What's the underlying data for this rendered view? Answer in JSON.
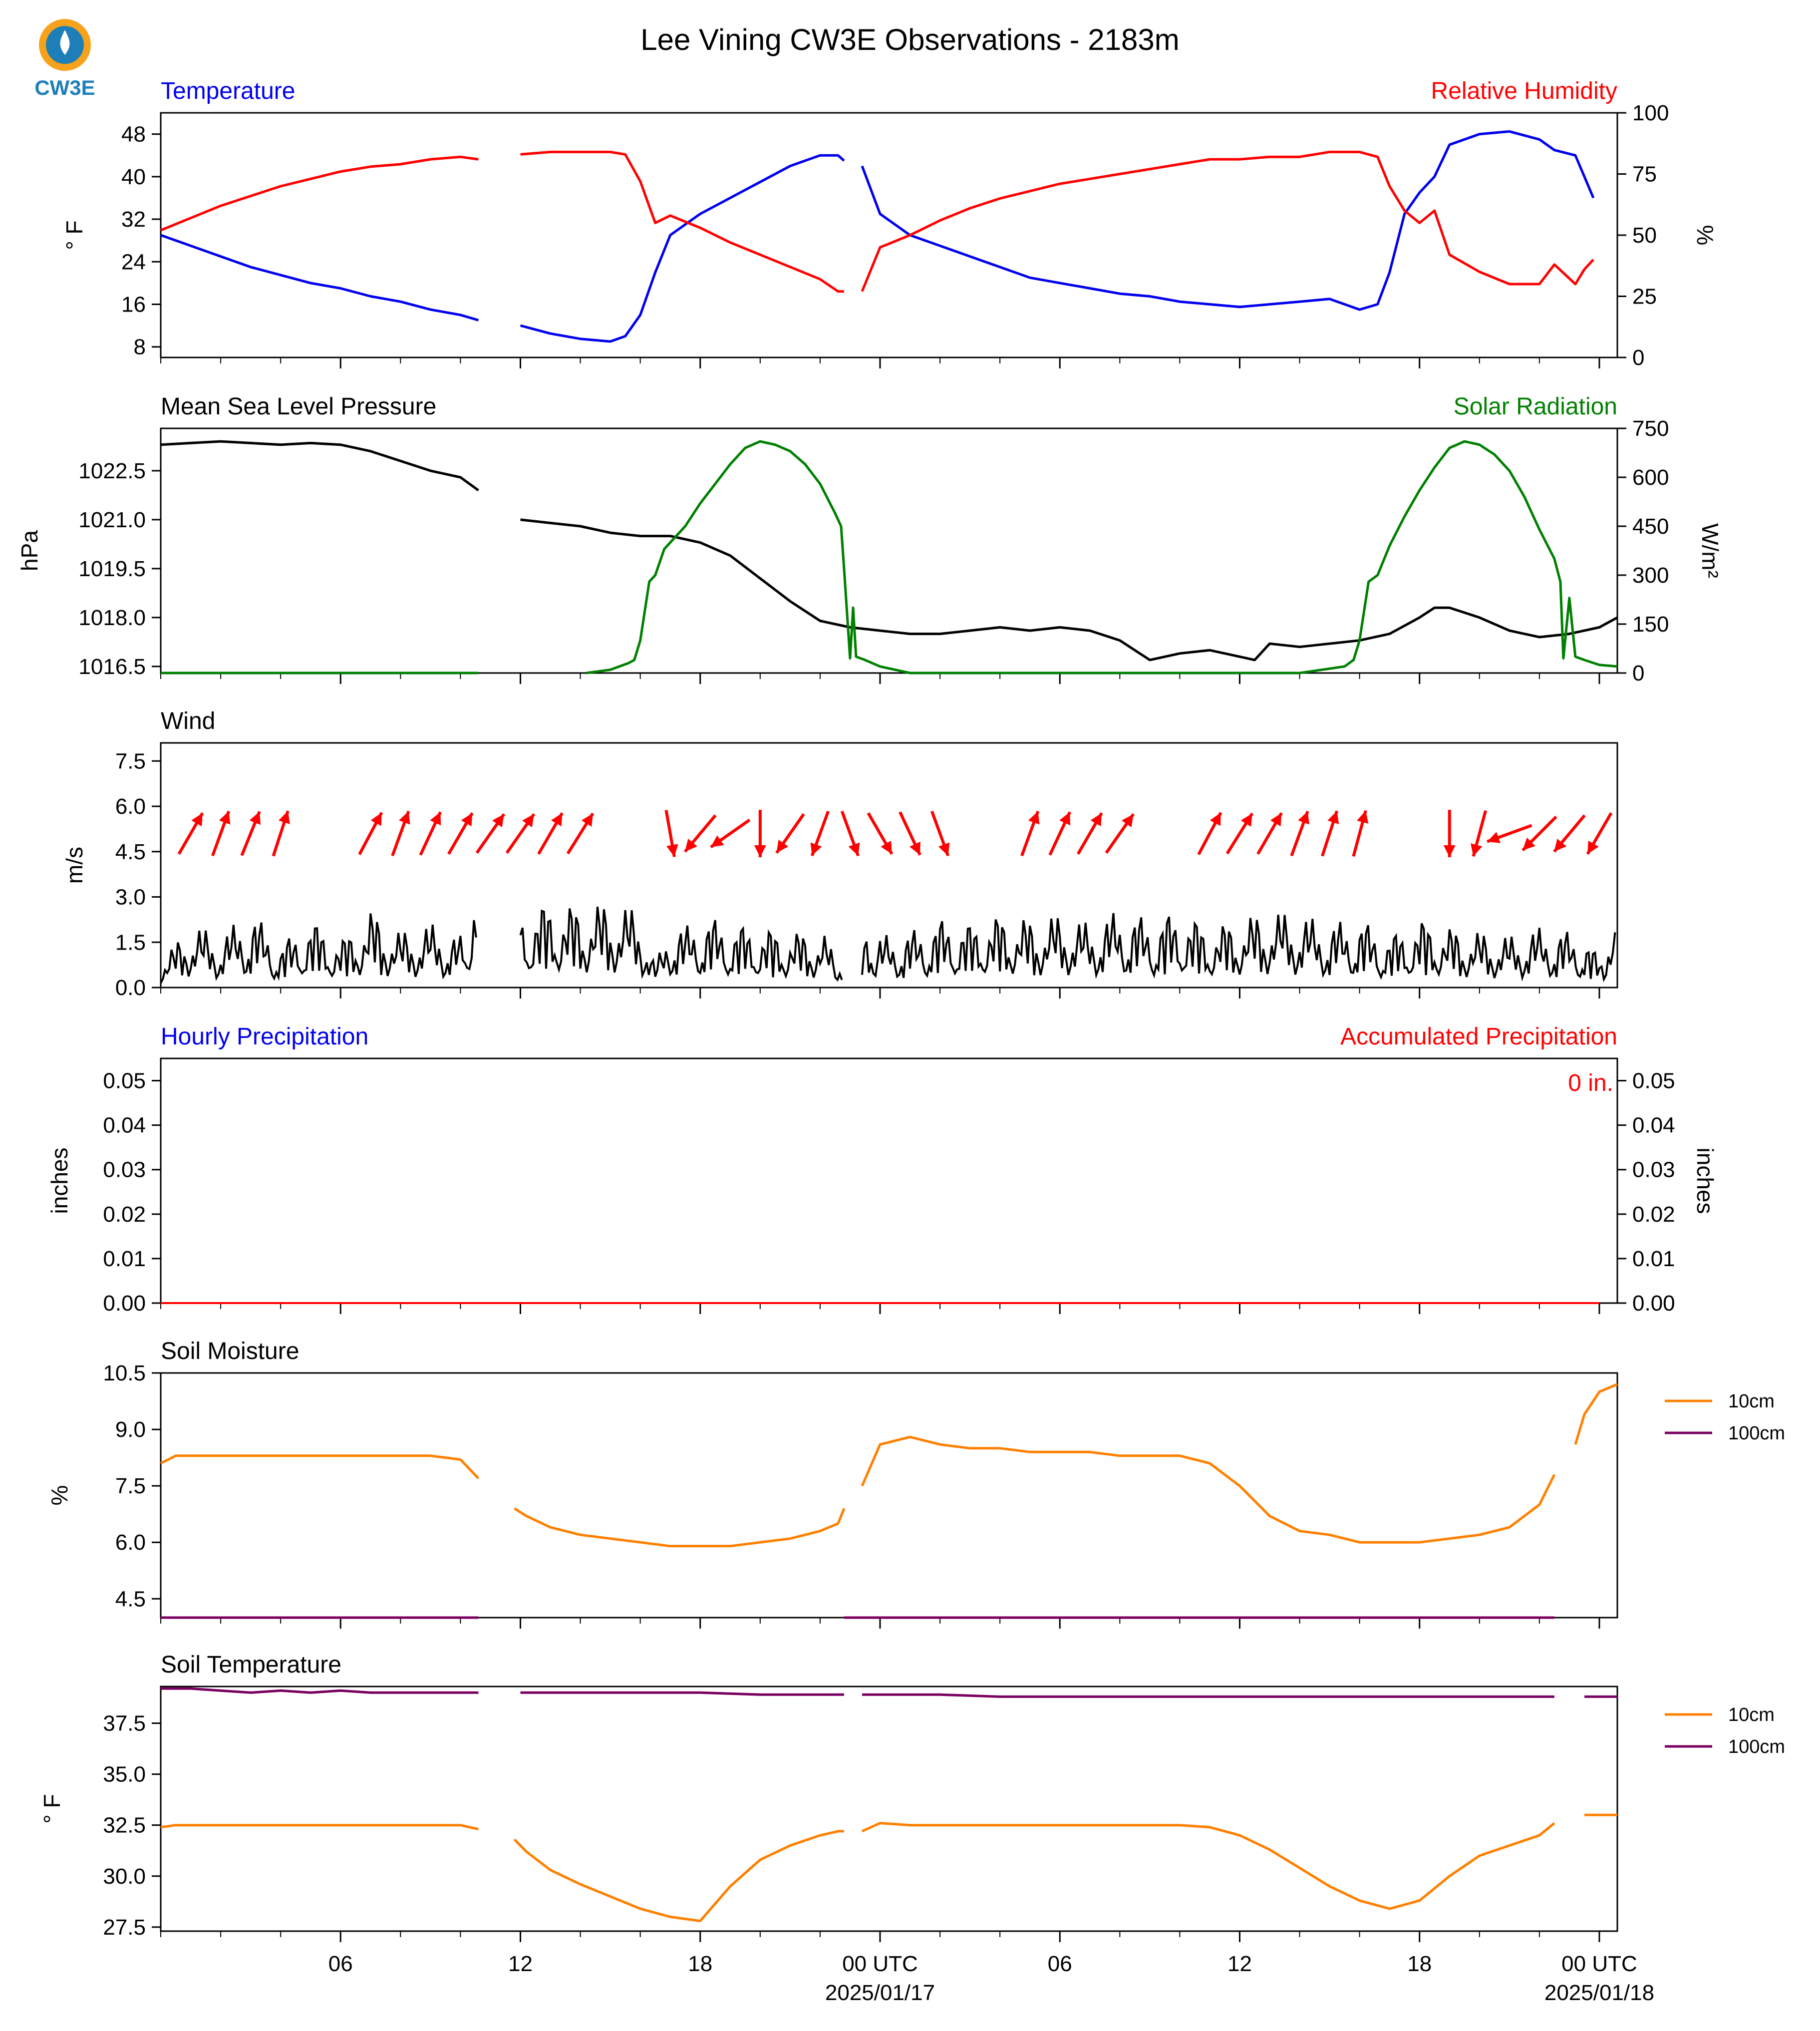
{
  "title": "Lee Vining CW3E Observations - 2183m",
  "logo_text": "CW3E",
  "colors": {
    "temperature": "#0000ee",
    "humidity": "#ff0000",
    "pressure": "#000000",
    "solar": "#008000",
    "wind_speed": "#000000",
    "wind_barb": "#ff0000",
    "hourly_precip": "#0000ee",
    "accum_precip": "#ff0000",
    "soil_10cm": "#ff8000",
    "soil_100cm": "#7a0060",
    "logo_orange": "#f7a21b",
    "logo_blue": "#1e7fb8"
  },
  "x_axis": {
    "range_hours": [
      -21,
      29
    ],
    "ticks": [
      {
        "hour": 6,
        "label": "06",
        "sub": ""
      },
      {
        "hour": 12,
        "label": "12",
        "sub": ""
      },
      {
        "hour": 18,
        "label": "18",
        "sub": ""
      },
      {
        "hour": 24,
        "label": "00 UTC",
        "sub": "2025/01/17"
      },
      {
        "hour": 30,
        "label": "06",
        "sub": ""
      },
      {
        "hour": 36,
        "label": "12",
        "sub": ""
      },
      {
        "hour": 42,
        "label": "18",
        "sub": ""
      },
      {
        "hour": 48,
        "label": "00 UTC",
        "sub": "2025/01/18"
      }
    ],
    "start_hour": 1,
    "end_hour": 49
  },
  "panels": {
    "temperature": {
      "left_title": "Temperature",
      "right_title": "Relative Humidity",
      "left_unit": "° F",
      "right_unit": "%",
      "left_ticks": [
        "8",
        "16",
        "24",
        "32",
        "40",
        "48"
      ],
      "right_ticks": [
        "0",
        "25",
        "50",
        "75",
        "100"
      ]
    },
    "pressure": {
      "left_title": "Mean Sea Level Pressure",
      "right_title": "Solar Radiation",
      "left_unit": "hPa",
      "right_unit": "W/m²",
      "left_ticks": [
        "1016.5",
        "1018.0",
        "1019.5",
        "1021.0",
        "1022.5"
      ],
      "right_ticks": [
        "0",
        "150",
        "300",
        "450",
        "600",
        "750"
      ]
    },
    "wind": {
      "left_title": "Wind",
      "left_unit": "m/s",
      "left_ticks": [
        "0.0",
        "1.5",
        "3.0",
        "4.5",
        "6.0",
        "7.5"
      ]
    },
    "precip": {
      "left_title": "Hourly Precipitation",
      "right_title": "Accumulated Precipitation",
      "left_unit": "inches",
      "right_unit": "inches",
      "left_ticks": [
        "0.00",
        "0.01",
        "0.02",
        "0.03",
        "0.04",
        "0.05"
      ],
      "right_ticks": [
        "0.00",
        "0.01",
        "0.02",
        "0.03",
        "0.04",
        "0.05"
      ],
      "accum_label": "0 in."
    },
    "soil_moisture": {
      "left_title": "Soil Moisture",
      "left_unit": "%",
      "left_ticks": [
        "4.5",
        "6.0",
        "7.5",
        "9.0",
        "10.5"
      ],
      "legend": [
        "10cm",
        "100cm"
      ]
    },
    "soil_temp": {
      "left_title": "Soil Temperature",
      "left_unit": "° F",
      "left_ticks": [
        "27.5",
        "30.0",
        "32.5",
        "35.0",
        "37.5"
      ],
      "legend": [
        "10cm",
        "100cm"
      ]
    }
  },
  "chart_data": [
    {
      "type": "line",
      "title": "Temperature",
      "ylabel": "° F",
      "ylim": [
        6,
        52
      ],
      "x": [
        0,
        1,
        2,
        3,
        4,
        5,
        6,
        7,
        8,
        9,
        10,
        10.6,
        11.2,
        12,
        13,
        14,
        15,
        15.5,
        16,
        16.5,
        17,
        18,
        19,
        20,
        21,
        22,
        22.6,
        22.8,
        23,
        23.4,
        24,
        25,
        26,
        27,
        28,
        29,
        30,
        31,
        32,
        33,
        34,
        35,
        36,
        37,
        38,
        39,
        40,
        40.6,
        41,
        41.5,
        42,
        42.5,
        43,
        44,
        45,
        46,
        46.5,
        47.2,
        47.5,
        47.8
      ],
      "y": [
        29,
        27,
        25,
        23,
        21.5,
        20,
        19,
        17.5,
        16.5,
        15,
        14,
        13,
        null,
        12,
        10.5,
        9.5,
        9,
        10,
        14,
        22,
        29,
        33,
        36,
        39,
        42,
        44,
        44,
        43,
        null,
        42,
        33,
        29,
        27,
        25,
        23,
        21,
        20,
        19,
        18,
        17.5,
        16.5,
        16,
        15.5,
        16,
        16.5,
        17,
        15,
        16,
        22,
        33,
        37,
        40,
        46,
        48,
        48.5,
        47,
        45,
        44,
        40,
        36
      ]
    },
    {
      "type": "line",
      "title": "Relative Humidity",
      "ylabel": "%",
      "ylim": [
        0,
        100
      ],
      "x": [
        0,
        1,
        2,
        3,
        4,
        5,
        6,
        7,
        8,
        9,
        10,
        10.6,
        11.2,
        12,
        13,
        14,
        15,
        15.5,
        16,
        16.5,
        17,
        18,
        19,
        20,
        21,
        22,
        22.6,
        22.8,
        23,
        23.4,
        24,
        25,
        26,
        27,
        28,
        29,
        30,
        31,
        32,
        33,
        34,
        35,
        36,
        37,
        38,
        39,
        40,
        40.6,
        41,
        41.5,
        42,
        42.5,
        43,
        44,
        45,
        46,
        46.5,
        47.2,
        47.5,
        47.8
      ],
      "y": [
        52,
        57,
        62,
        66,
        70,
        73,
        76,
        78,
        79,
        81,
        82,
        81,
        null,
        83,
        84,
        84,
        84,
        83,
        72,
        55,
        58,
        53,
        47,
        42,
        37,
        32,
        27,
        27,
        null,
        27,
        45,
        50,
        56,
        61,
        65,
        68,
        71,
        73,
        75,
        77,
        79,
        81,
        81,
        82,
        82,
        84,
        84,
        82,
        70,
        60,
        55,
        60,
        42,
        35,
        30,
        30,
        38,
        30,
        36,
        40
      ]
    },
    {
      "type": "line",
      "title": "Mean Sea Level Pressure",
      "ylabel": "hPa",
      "ylim": [
        1016.3,
        1023.8
      ],
      "x": [
        0,
        1,
        2,
        3,
        4,
        5,
        6,
        7,
        8,
        9,
        10,
        10.6,
        11.2,
        12,
        13,
        14,
        15,
        16,
        17,
        18,
        19,
        20,
        21,
        22,
        23,
        24,
        25,
        26,
        27,
        28,
        29,
        30,
        31,
        32,
        33,
        34,
        35,
        36,
        36.5,
        37,
        38,
        39,
        40,
        41,
        42,
        42.5,
        43,
        44,
        45,
        46,
        47,
        48,
        48.6
      ],
      "y": [
        1023.3,
        1023.35,
        1023.4,
        1023.35,
        1023.3,
        1023.35,
        1023.3,
        1023.1,
        1022.8,
        1022.5,
        1022.3,
        1021.9,
        null,
        1021.0,
        1020.9,
        1020.8,
        1020.6,
        1020.5,
        1020.5,
        1020.3,
        1019.9,
        1019.2,
        1018.5,
        1017.9,
        1017.7,
        1017.6,
        1017.5,
        1017.5,
        1017.6,
        1017.7,
        1017.6,
        1017.7,
        1017.6,
        1017.3,
        1016.7,
        1016.9,
        1017.0,
        1016.8,
        1016.7,
        1017.2,
        1017.1,
        1017.2,
        1017.3,
        1017.5,
        1018.0,
        1018.3,
        1018.3,
        1018.0,
        1017.6,
        1017.4,
        1017.5,
        1017.7,
        1018.0
      ]
    },
    {
      "type": "line",
      "title": "Solar Radiation",
      "ylabel": "W/m²",
      "ylim": [
        0,
        750
      ],
      "x": [
        0,
        10.6,
        11.2,
        14.2,
        15,
        15.6,
        15.8,
        16,
        16.3,
        16.5,
        16.8,
        17.5,
        18,
        18.5,
        19,
        19.5,
        20,
        20.5,
        21,
        21.5,
        22,
        22.5,
        22.7,
        22.8,
        23,
        23.1,
        23.2,
        23.5,
        24,
        25,
        36,
        38,
        39.5,
        39.8,
        40,
        40.3,
        40.6,
        41,
        41.5,
        42,
        42.5,
        43,
        43.5,
        44,
        44.5,
        45,
        45.5,
        46,
        46.5,
        46.7,
        46.8,
        47,
        47.2,
        47.5,
        48,
        48.6
      ],
      "y": [
        0,
        0,
        null,
        0,
        10,
        30,
        40,
        100,
        280,
        300,
        380,
        450,
        520,
        580,
        640,
        690,
        710,
        700,
        680,
        640,
        580,
        490,
        450,
        320,
        45,
        200,
        50,
        40,
        20,
        0,
        0,
        0,
        20,
        40,
        100,
        280,
        300,
        390,
        480,
        560,
        630,
        690,
        710,
        700,
        670,
        620,
        540,
        440,
        350,
        280,
        45,
        230,
        50,
        40,
        25,
        20
      ]
    },
    {
      "type": "line",
      "title": "Wind",
      "ylabel": "m/s",
      "ylim": [
        0,
        8.1
      ],
      "x": [
        0,
        1,
        2,
        3,
        4,
        5,
        6,
        7,
        8,
        9,
        10,
        10.6,
        11.2,
        12,
        13,
        14,
        15,
        16,
        16.5,
        17,
        17.5,
        18,
        19,
        20,
        21,
        22,
        22.8,
        23,
        23.4,
        24,
        25,
        26,
        27,
        28,
        29,
        30,
        31,
        32,
        33,
        34,
        35,
        36,
        37,
        38,
        39,
        40,
        41,
        42,
        43,
        44,
        45,
        46,
        47,
        47.5,
        48,
        48.6
      ],
      "y": [
        0.6,
        1.5,
        1.2,
        1.8,
        1.0,
        1.6,
        1.1,
        1.8,
        1.3,
        1.5,
        1.2,
        1.9,
        null,
        1.8,
        2.0,
        1.9,
        2.0,
        1.8,
        0.5,
        1.6,
        1.4,
        1.7,
        1.5,
        1.4,
        1.3,
        1.3,
        0.8,
        null,
        1.1,
        1.2,
        1.3,
        1.6,
        1.5,
        1.7,
        1.6,
        1.7,
        1.5,
        1.8,
        1.6,
        1.8,
        1.4,
        1.6,
        1.8,
        1.7,
        1.5,
        1.6,
        1.2,
        1.6,
        1.4,
        1.3,
        1.2,
        1.4,
        1.3,
        1.2,
        0.7,
        1.4
      ]
    },
    {
      "type": "line",
      "title": "Hourly Precipitation",
      "ylabel": "inches",
      "ylim": [
        0,
        0.055
      ],
      "x": [
        0,
        48
      ],
      "y": [
        0,
        0
      ]
    },
    {
      "type": "line",
      "title": "Accumulated Precipitation",
      "ylabel": "inches",
      "ylim": [
        0,
        0.055
      ],
      "x": [
        0,
        48
      ],
      "y": [
        0,
        0
      ]
    },
    {
      "type": "line",
      "title": "Soil Moisture",
      "ylabel": "%",
      "ylim": [
        4.0,
        10.5
      ],
      "series": [
        {
          "name": "10cm",
          "x": [
            0,
            0.5,
            1,
            2,
            3,
            4,
            5,
            6,
            7,
            8,
            9,
            10,
            10.6,
            11.2,
            11.8,
            12.2,
            13,
            14,
            15,
            16,
            17,
            18,
            19,
            20,
            21,
            22,
            22.6,
            22.8,
            23,
            23.4,
            24,
            25,
            26,
            27,
            28,
            29,
            30,
            31,
            32,
            33,
            34,
            35,
            36,
            37,
            38,
            39,
            40,
            41,
            42,
            43,
            44,
            45,
            46,
            46.5,
            47,
            47.2,
            47.5,
            48,
            48.6
          ],
          "y": [
            8.1,
            8.3,
            8.3,
            8.3,
            8.3,
            8.3,
            8.3,
            8.3,
            8.3,
            8.3,
            8.3,
            8.2,
            7.7,
            null,
            6.9,
            6.7,
            6.4,
            6.2,
            6.1,
            6.0,
            5.9,
            5.9,
            5.9,
            6.0,
            6.1,
            6.3,
            6.5,
            6.9,
            null,
            7.5,
            8.6,
            8.8,
            8.6,
            8.5,
            8.5,
            8.4,
            8.4,
            8.4,
            8.3,
            8.3,
            8.3,
            8.1,
            7.5,
            6.7,
            6.3,
            6.2,
            6.0,
            6.0,
            6.0,
            6.1,
            6.2,
            6.4,
            7.0,
            7.8,
            null,
            8.6,
            9.4,
            10.0,
            10.2
          ]
        },
        {
          "name": "100cm",
          "x": [
            0,
            10.6,
            11.2,
            22.8,
            23.4,
            46.5,
            47.5,
            48.6
          ],
          "y": [
            4.0,
            4.0,
            null,
            4.0,
            4.0,
            4.0,
            null,
            4.0
          ]
        }
      ]
    },
    {
      "type": "line",
      "title": "Soil Temperature",
      "ylabel": "° F",
      "ylim": [
        27.3,
        39.3
      ],
      "series": [
        {
          "name": "10cm",
          "x": [
            0,
            0.5,
            1,
            3,
            5,
            7,
            9,
            10,
            10.6,
            11.2,
            11.8,
            12.2,
            13,
            14,
            15,
            16,
            17,
            18,
            19,
            20,
            21,
            22,
            22.6,
            22.8,
            23,
            23.4,
            24,
            25,
            26,
            28,
            30,
            32,
            34,
            35,
            36,
            37,
            38,
            39,
            40,
            41,
            42,
            43,
            44,
            45,
            46,
            46.5,
            47,
            47.5,
            48,
            48.6
          ],
          "y": [
            32.4,
            32.5,
            32.5,
            32.5,
            32.5,
            32.5,
            32.5,
            32.5,
            32.3,
            null,
            31.8,
            31.2,
            30.3,
            29.6,
            29.0,
            28.4,
            28.0,
            27.8,
            29.5,
            30.8,
            31.5,
            32.0,
            32.2,
            32.2,
            null,
            32.2,
            32.6,
            32.5,
            32.5,
            32.5,
            32.5,
            32.5,
            32.5,
            32.4,
            32.0,
            31.3,
            30.4,
            29.5,
            28.8,
            28.4,
            28.8,
            30.0,
            31.0,
            31.5,
            32.0,
            32.6,
            null,
            33.0,
            33.0,
            33.0
          ]
        },
        {
          "name": "100cm",
          "x": [
            0,
            1,
            2,
            3,
            4,
            5,
            6,
            7,
            8,
            9,
            10,
            10.6,
            11.2,
            12,
            14,
            16,
            18,
            20,
            22,
            22.8,
            23,
            23.4,
            24,
            26,
            28,
            30,
            32,
            34,
            36,
            38,
            40,
            42,
            44,
            46,
            46.5,
            47,
            47.5,
            48,
            48.6
          ],
          "y": [
            39.2,
            39.2,
            39.1,
            39.0,
            39.1,
            39.0,
            39.1,
            39.0,
            39.0,
            39.0,
            39.0,
            39.0,
            null,
            39.0,
            39.0,
            39.0,
            39.0,
            38.9,
            38.9,
            38.9,
            null,
            38.9,
            38.9,
            38.9,
            38.8,
            38.8,
            38.8,
            38.8,
            38.8,
            38.8,
            38.8,
            38.8,
            38.8,
            38.8,
            38.8,
            null,
            38.8,
            38.8,
            38.8
          ]
        }
      ]
    }
  ],
  "wind_barbs": {
    "hours": [
      1,
      2,
      3,
      4,
      7,
      8,
      9,
      10,
      11,
      12,
      13,
      14,
      17,
      18,
      19,
      20,
      21,
      22,
      23,
      24,
      25,
      26,
      29,
      30,
      31,
      32,
      35,
      36,
      37,
      38,
      39,
      40,
      43,
      44,
      45,
      46,
      47,
      48
    ],
    "directions_deg": [
      60,
      70,
      68,
      72,
      62,
      70,
      65,
      60,
      55,
      55,
      60,
      58,
      280,
      230,
      215,
      270,
      235,
      250,
      290,
      300,
      295,
      290,
      70,
      65,
      60,
      55,
      62,
      58,
      60,
      70,
      72,
      75,
      270,
      255,
      200,
      225,
      230,
      240
    ]
  }
}
